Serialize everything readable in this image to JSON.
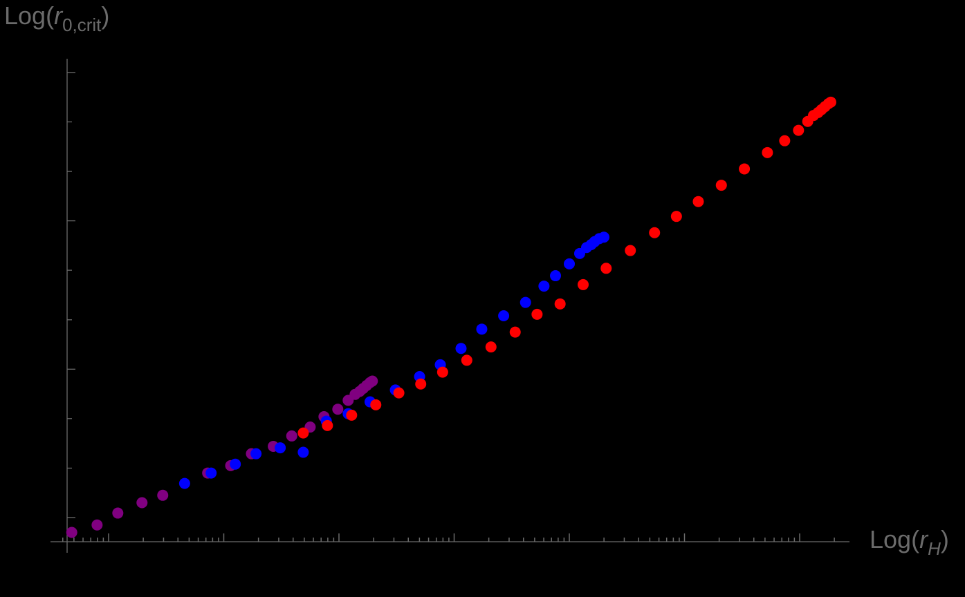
{
  "chart_data": {
    "type": "scatter",
    "title": "",
    "xlabel": "Log(r_H)",
    "ylabel": "Log(r_0,crit)",
    "xlabel_parts": {
      "prefix": "Log(",
      "var": "r",
      "sub": "H",
      "suffix": ")"
    },
    "ylabel_parts": {
      "prefix": "Log(",
      "var": "r",
      "sub": "0,crit",
      "suffix": ")"
    },
    "x_scale": "log",
    "tick_labels_shown": false,
    "grid": false,
    "legend": null,
    "units_note": "x in decades relative to first major x tick; y in units of major y-tick spacing relative to lowest major y tick",
    "xlim": [
      -0.5,
      6.45
    ],
    "ylim": [
      -0.16,
      3.11
    ],
    "x_major_ticks": [
      0,
      1,
      2,
      3,
      4,
      5,
      6
    ],
    "y_major_ticks": [
      0,
      1,
      2,
      3
    ],
    "y_minor_ticks": [
      0.333,
      0.667,
      1.333,
      1.667,
      2.333,
      2.667
    ],
    "series": [
      {
        "name": "purple",
        "color": "#800080",
        "x": [
          -0.32,
          -0.1,
          0.08,
          0.29,
          0.47,
          0.86,
          1.06,
          1.24,
          1.43,
          1.59,
          1.75,
          1.87,
          1.99,
          2.08,
          2.14,
          2.18,
          2.21,
          2.24,
          2.27,
          2.29
        ],
        "y": [
          -0.1,
          -0.05,
          0.03,
          0.1,
          0.15,
          0.3,
          0.35,
          0.43,
          0.48,
          0.55,
          0.61,
          0.68,
          0.73,
          0.79,
          0.83,
          0.85,
          0.87,
          0.89,
          0.91,
          0.92
        ]
      },
      {
        "name": "blue",
        "color": "#0000ff",
        "x": [
          0.66,
          0.89,
          1.1,
          1.28,
          1.49,
          1.69,
          1.89,
          2.08,
          2.27,
          2.49,
          2.7,
          2.88,
          3.06,
          3.24,
          3.43,
          3.62,
          3.78,
          3.88,
          4.0,
          4.09,
          4.15,
          4.19,
          4.22,
          4.26,
          4.3
        ],
        "y": [
          0.23,
          0.3,
          0.36,
          0.43,
          0.47,
          0.44,
          0.65,
          0.7,
          0.78,
          0.86,
          0.95,
          1.03,
          1.14,
          1.27,
          1.36,
          1.45,
          1.56,
          1.63,
          1.71,
          1.78,
          1.82,
          1.84,
          1.86,
          1.88,
          1.89
        ]
      },
      {
        "name": "red",
        "color": "#ff0000",
        "x": [
          1.69,
          1.9,
          2.11,
          2.32,
          2.52,
          2.71,
          2.9,
          3.11,
          3.32,
          3.53,
          3.72,
          3.92,
          4.12,
          4.32,
          4.53,
          4.74,
          4.93,
          5.12,
          5.32,
          5.52,
          5.72,
          5.87,
          5.99,
          6.07,
          6.12,
          6.16,
          6.19,
          6.22,
          6.25,
          6.27
        ],
        "y": [
          0.57,
          0.62,
          0.69,
          0.76,
          0.84,
          0.9,
          0.98,
          1.06,
          1.15,
          1.25,
          1.37,
          1.44,
          1.57,
          1.68,
          1.8,
          1.92,
          2.03,
          2.13,
          2.24,
          2.35,
          2.46,
          2.54,
          2.61,
          2.67,
          2.71,
          2.73,
          2.75,
          2.77,
          2.79,
          2.8
        ]
      }
    ]
  },
  "colors": {
    "background": "#000000",
    "axis": "#6b6b6b"
  }
}
